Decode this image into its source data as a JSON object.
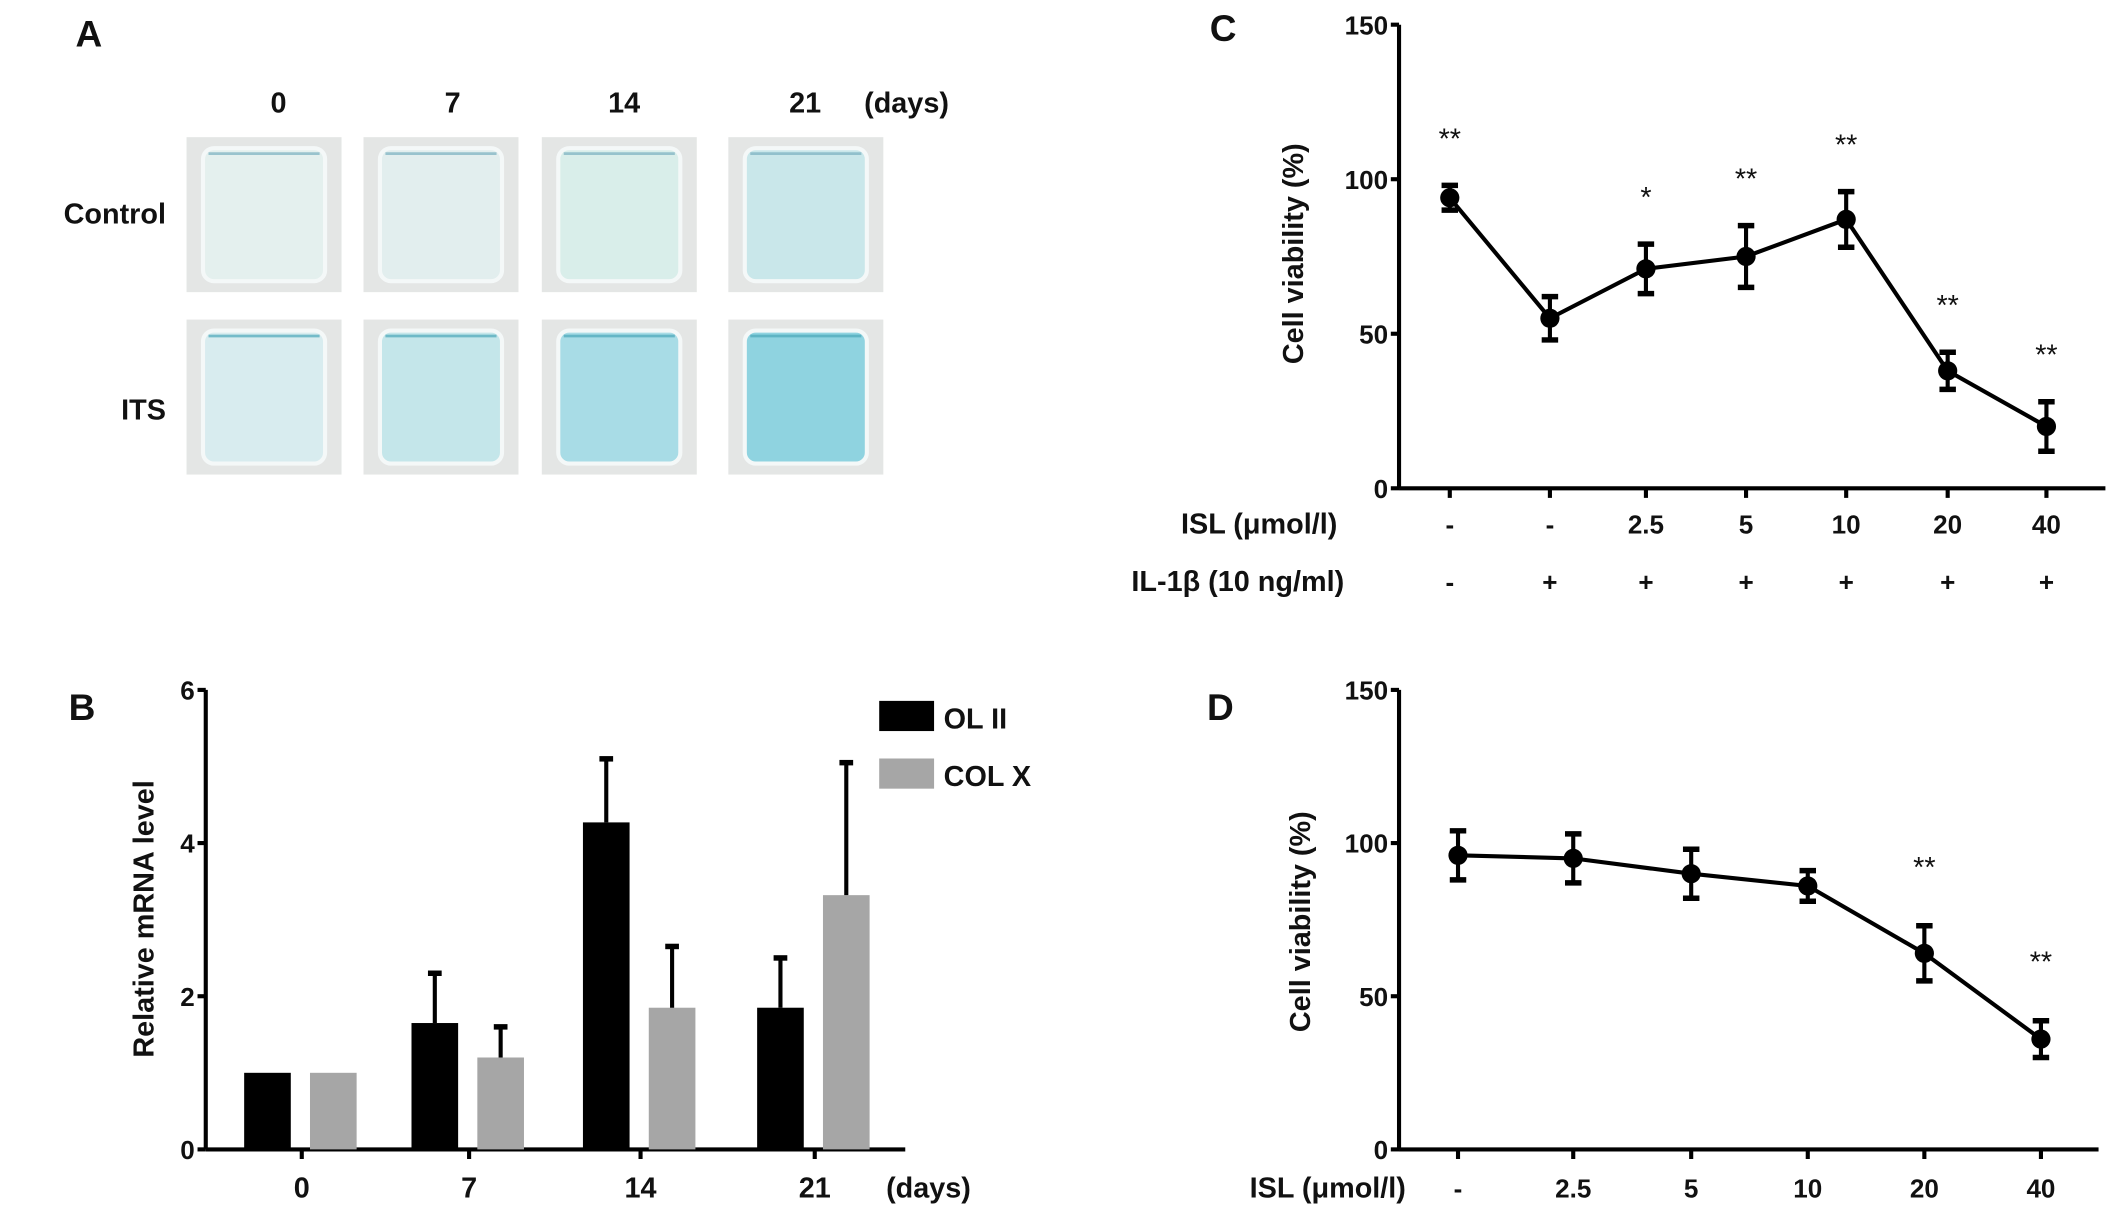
{
  "panel_a": {
    "label": "A",
    "columns": [
      "0",
      "7",
      "14",
      "21"
    ],
    "unit": "(days)",
    "rows": [
      {
        "label": "Control",
        "stain_colors": [
          "#e4f0ee",
          "#e2eeee",
          "#d9eeea",
          "#c9e7ea"
        ]
      },
      {
        "label": "ITS",
        "stain_colors": [
          "#d8ecef",
          "#c4e6ea",
          "#a8dce6",
          "#8fd3e0"
        ]
      }
    ]
  },
  "chart_data": [
    {
      "panel": "B",
      "type": "bar",
      "title": "",
      "xlabel": "(days)",
      "ylabel": "Relative mRNA level",
      "ylim": [
        0,
        6
      ],
      "yticks": [
        "0",
        "2",
        "4",
        "6"
      ],
      "categories": [
        "0",
        "7",
        "14",
        "21"
      ],
      "legend_position": "top-right",
      "series": [
        {
          "name": "OL II",
          "color": "#000000",
          "values": [
            1.0,
            1.65,
            4.27,
            1.85
          ],
          "error_upper": [
            1.0,
            2.3,
            5.1,
            2.5
          ]
        },
        {
          "name": "COL X",
          "color": "#a6a6a6",
          "values": [
            1.0,
            1.2,
            1.85,
            3.32
          ],
          "error_upper": [
            1.0,
            1.6,
            2.65,
            5.05
          ]
        }
      ]
    },
    {
      "panel": "C",
      "type": "line",
      "ylabel": "Cell viability (%)",
      "ylim": [
        0,
        150
      ],
      "yticks": [
        "0",
        "50",
        "100",
        "150"
      ],
      "row_labels": [
        "ISL (μmol/l)",
        "IL-1β (10 ng/ml)"
      ],
      "categories": [
        "-",
        "-",
        "2.5",
        "5",
        "10",
        "20",
        "40"
      ],
      "il1b": [
        "-",
        "+",
        "+",
        "+",
        "+",
        "+",
        "+"
      ],
      "values": [
        94,
        55,
        71,
        75,
        87,
        38,
        20
      ],
      "errors": [
        4,
        7,
        8,
        10,
        9,
        6,
        8
      ],
      "significance": [
        "**",
        "",
        "*",
        "**",
        "**",
        "**",
        "**"
      ]
    },
    {
      "panel": "D",
      "type": "line",
      "ylabel": "Cell viability (%)",
      "ylim": [
        0,
        150
      ],
      "yticks": [
        "0",
        "50",
        "100",
        "150"
      ],
      "row_labels": [
        "ISL (μmol/l)"
      ],
      "categories": [
        "-",
        "2.5",
        "5",
        "10",
        "20",
        "40"
      ],
      "values": [
        96,
        95,
        90,
        86,
        64,
        36
      ],
      "errors": [
        8,
        8,
        8,
        5,
        9,
        6
      ],
      "significance": [
        "",
        "",
        "",
        "",
        "**",
        "**"
      ]
    }
  ]
}
